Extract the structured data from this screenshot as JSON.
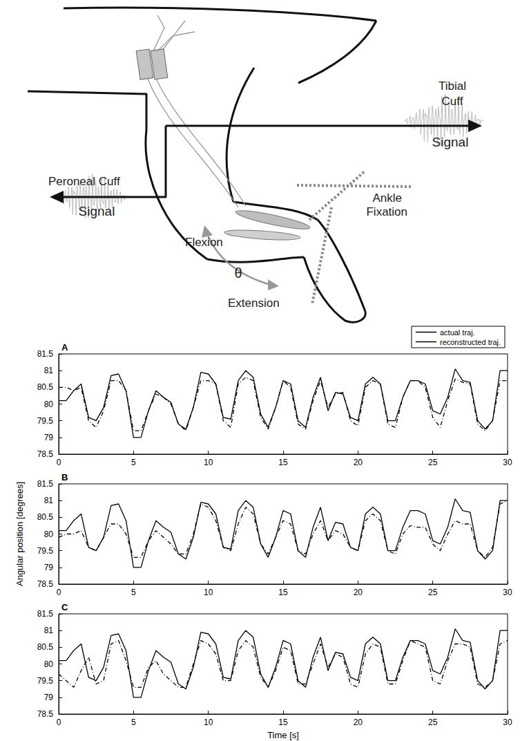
{
  "diagram": {
    "labels": {
      "tibial_cuff": "Tibial Cuff",
      "tibial_signal": "Signal",
      "peroneal_cuff": "Peroneal Cuff",
      "peroneal_signal": "Signal",
      "ankle_fixation": "Ankle Fixation",
      "flexion": "Flexion",
      "extension": "Extension",
      "angle": "θ"
    }
  },
  "chart_data": [
    {
      "type": "line",
      "title": "A",
      "legend": "top right",
      "x": [
        0,
        0.5,
        1,
        1.5,
        2,
        2.5,
        3,
        3.5,
        4,
        4.5,
        5,
        5.5,
        6,
        6.5,
        7,
        7.5,
        8,
        8.5,
        9,
        9.5,
        10,
        10.5,
        11,
        11.5,
        12,
        12.5,
        13,
        13.5,
        14,
        14.5,
        15,
        15.5,
        16,
        16.5,
        17,
        17.5,
        18,
        18.5,
        19,
        19.5,
        20,
        20.5,
        21,
        21.5,
        22,
        22.5,
        23,
        23.5,
        24,
        24.5,
        25,
        25.5,
        26,
        26.5,
        27,
        27.5,
        28,
        28.5,
        29,
        29.5,
        30
      ],
      "series": [
        {
          "name": "actual traj.",
          "color": "#000000",
          "line_style": "solid",
          "values": [
            80.1,
            80.1,
            80.4,
            80.6,
            79.6,
            79.5,
            79.9,
            80.85,
            80.9,
            80.4,
            79.0,
            79.0,
            79.8,
            80.4,
            80.2,
            80.05,
            79.4,
            79.25,
            79.9,
            80.95,
            80.9,
            80.6,
            79.6,
            79.55,
            80.7,
            81.0,
            80.8,
            79.7,
            79.3,
            79.9,
            80.7,
            80.6,
            79.5,
            79.3,
            80.2,
            80.8,
            79.8,
            80.35,
            80.3,
            79.6,
            79.5,
            80.6,
            80.8,
            80.6,
            79.5,
            79.5,
            80.2,
            80.7,
            80.7,
            80.6,
            79.8,
            79.7,
            80.2,
            81.05,
            80.7,
            80.65,
            79.5,
            79.25,
            79.5,
            81.0,
            81.0
          ]
        },
        {
          "name": "reconstructed traj.",
          "color": "#000000",
          "line_style": "dashdot",
          "values": [
            80.5,
            80.5,
            80.4,
            80.5,
            79.5,
            79.3,
            79.8,
            80.7,
            80.7,
            80.4,
            79.2,
            79.2,
            79.8,
            80.3,
            80.2,
            80.0,
            79.4,
            79.2,
            79.9,
            80.7,
            80.7,
            80.6,
            79.5,
            79.3,
            80.6,
            80.8,
            80.7,
            79.6,
            79.25,
            79.9,
            80.7,
            80.5,
            79.4,
            79.25,
            80.1,
            80.7,
            79.9,
            80.3,
            80.35,
            79.5,
            79.35,
            80.5,
            80.7,
            80.6,
            79.4,
            79.3,
            80.2,
            80.7,
            80.7,
            80.5,
            79.6,
            79.3,
            80.1,
            80.75,
            80.65,
            80.6,
            79.4,
            79.2,
            79.5,
            80.7,
            80.7
          ]
        }
      ],
      "xlim": [
        0,
        30
      ],
      "xticks": [
        0,
        5,
        10,
        15,
        20,
        25,
        30
      ],
      "ylim": [
        78.5,
        81.5
      ],
      "yticks": [
        78.5,
        79,
        79.5,
        80,
        80.5,
        81,
        81.5
      ]
    },
    {
      "type": "line",
      "title": "B",
      "ylabel": "Angular position [degrees]",
      "x": [
        0,
        0.5,
        1,
        1.5,
        2,
        2.5,
        3,
        3.5,
        4,
        4.5,
        5,
        5.5,
        6,
        6.5,
        7,
        7.5,
        8,
        8.5,
        9,
        9.5,
        10,
        10.5,
        11,
        11.5,
        12,
        12.5,
        13,
        13.5,
        14,
        14.5,
        15,
        15.5,
        16,
        16.5,
        17,
        17.5,
        18,
        18.5,
        19,
        19.5,
        20,
        20.5,
        21,
        21.5,
        22,
        22.5,
        23,
        23.5,
        24,
        24.5,
        25,
        25.5,
        26,
        26.5,
        27,
        27.5,
        28,
        28.5,
        29,
        29.5,
        30
      ],
      "series": [
        {
          "name": "actual traj.",
          "color": "#000000",
          "line_style": "solid",
          "values": [
            80.1,
            80.1,
            80.4,
            80.6,
            79.6,
            79.5,
            79.9,
            80.85,
            80.9,
            80.4,
            79.0,
            79.0,
            79.8,
            80.4,
            80.2,
            80.05,
            79.4,
            79.25,
            79.9,
            80.95,
            80.9,
            80.6,
            79.6,
            79.55,
            80.7,
            81.0,
            80.8,
            79.7,
            79.3,
            79.9,
            80.7,
            80.6,
            79.5,
            79.3,
            80.2,
            80.8,
            79.8,
            80.35,
            80.3,
            79.6,
            79.5,
            80.6,
            80.8,
            80.6,
            79.5,
            79.5,
            80.2,
            80.7,
            80.7,
            80.6,
            79.8,
            79.7,
            80.2,
            81.05,
            80.7,
            80.65,
            79.5,
            79.25,
            79.5,
            81.0,
            81.0
          ]
        },
        {
          "name": "reconstructed traj.",
          "color": "#000000",
          "line_style": "dashdot",
          "values": [
            79.9,
            80.0,
            80.0,
            80.1,
            79.6,
            79.5,
            79.9,
            80.3,
            80.3,
            80.0,
            79.3,
            79.3,
            79.8,
            80.1,
            79.9,
            79.7,
            79.4,
            79.4,
            80.0,
            80.9,
            80.8,
            80.4,
            79.6,
            79.5,
            80.3,
            80.8,
            80.6,
            79.7,
            79.4,
            79.9,
            80.4,
            80.3,
            79.5,
            79.4,
            80.0,
            80.4,
            79.8,
            80.1,
            80.0,
            79.6,
            79.5,
            80.4,
            80.6,
            80.4,
            79.5,
            79.4,
            80.0,
            80.25,
            80.2,
            80.2,
            79.7,
            79.5,
            80.0,
            80.4,
            80.3,
            80.3,
            79.5,
            79.3,
            79.6,
            80.9,
            81.0
          ]
        }
      ],
      "xlim": [
        0,
        30
      ],
      "xticks": [
        0,
        5,
        10,
        15,
        20,
        25,
        30
      ],
      "ylim": [
        78.5,
        81.5
      ],
      "yticks": [
        78.5,
        79,
        79.5,
        80,
        80.5,
        81,
        81.5
      ]
    },
    {
      "type": "line",
      "title": "C",
      "xlabel": "Time [s]",
      "x": [
        0,
        0.5,
        1,
        1.5,
        2,
        2.5,
        3,
        3.5,
        4,
        4.5,
        5,
        5.5,
        6,
        6.5,
        7,
        7.5,
        8,
        8.5,
        9,
        9.5,
        10,
        10.5,
        11,
        11.5,
        12,
        12.5,
        13,
        13.5,
        14,
        14.5,
        15,
        15.5,
        16,
        16.5,
        17,
        17.5,
        18,
        18.5,
        19,
        19.5,
        20,
        20.5,
        21,
        21.5,
        22,
        22.5,
        23,
        23.5,
        24,
        24.5,
        25,
        25.5,
        26,
        26.5,
        27,
        27.5,
        28,
        28.5,
        29,
        29.5,
        30
      ],
      "series": [
        {
          "name": "actual traj.",
          "color": "#000000",
          "line_style": "solid",
          "values": [
            80.1,
            80.1,
            80.4,
            80.6,
            79.6,
            79.5,
            79.9,
            80.85,
            80.9,
            80.4,
            79.0,
            79.0,
            79.8,
            80.4,
            80.2,
            80.05,
            79.4,
            79.25,
            79.9,
            80.95,
            80.9,
            80.6,
            79.6,
            79.55,
            80.7,
            81.0,
            80.8,
            79.7,
            79.3,
            79.9,
            80.7,
            80.6,
            79.5,
            79.3,
            80.2,
            80.8,
            79.8,
            80.35,
            80.3,
            79.6,
            79.5,
            80.6,
            80.8,
            80.6,
            79.5,
            79.5,
            80.2,
            80.7,
            80.7,
            80.6,
            79.8,
            79.7,
            80.2,
            81.05,
            80.7,
            80.65,
            79.5,
            79.25,
            79.5,
            81.0,
            81.0
          ]
        },
        {
          "name": "reconstructed traj.",
          "color": "#000000",
          "line_style": "dashdot",
          "values": [
            79.7,
            79.5,
            79.3,
            79.8,
            80.2,
            79.4,
            79.5,
            80.6,
            80.7,
            80.1,
            79.3,
            79.3,
            79.9,
            80.1,
            79.7,
            79.5,
            79.3,
            79.3,
            80.0,
            80.7,
            80.6,
            80.3,
            79.5,
            79.5,
            80.4,
            80.7,
            80.5,
            79.6,
            79.3,
            79.8,
            80.5,
            80.4,
            79.4,
            79.4,
            80.0,
            80.6,
            79.9,
            80.3,
            80.2,
            79.4,
            79.3,
            80.3,
            80.6,
            80.5,
            79.4,
            79.4,
            80.1,
            80.7,
            80.6,
            80.5,
            79.5,
            79.4,
            80.1,
            80.6,
            80.6,
            80.5,
            79.4,
            79.3,
            79.5,
            80.6,
            80.7
          ]
        }
      ],
      "xlim": [
        0,
        30
      ],
      "xticks": [
        0,
        5,
        10,
        15,
        20,
        25,
        30
      ],
      "ylim": [
        78.5,
        81.5
      ],
      "yticks": [
        78.5,
        79,
        79.5,
        80,
        80.5,
        81,
        81.5
      ]
    }
  ]
}
